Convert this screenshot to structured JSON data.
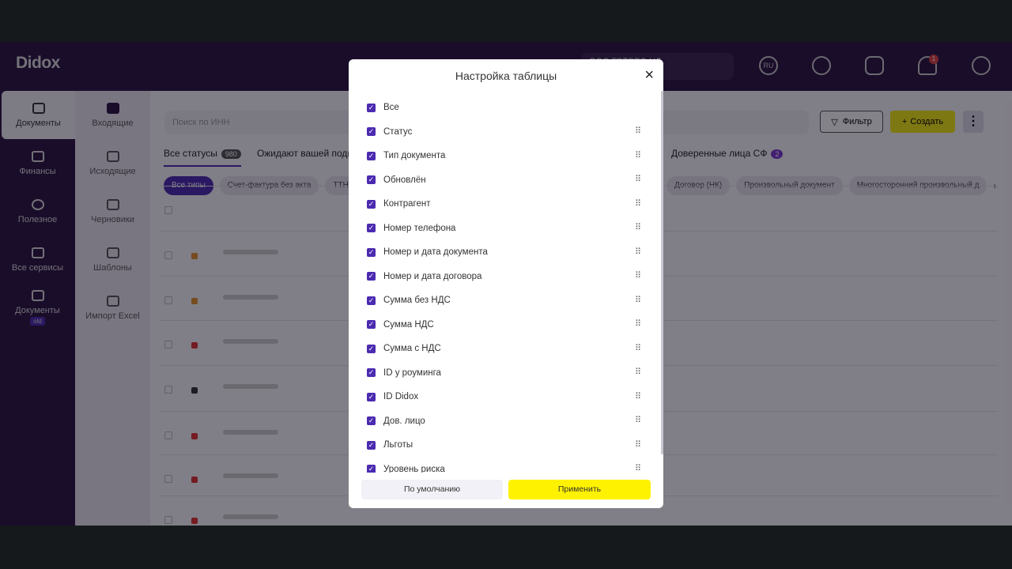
{
  "header": {
    "logo": "Didox",
    "company": "ООО ГОТОВО НЛ",
    "lang": "RU",
    "notifications": "1"
  },
  "sidebar": {
    "items": [
      {
        "label": "Документы"
      },
      {
        "label": "Финансы"
      },
      {
        "label": "Полезное"
      },
      {
        "label": "Все сервисы"
      },
      {
        "label": "Документы",
        "badge": "old"
      }
    ]
  },
  "subnav": {
    "items": [
      {
        "label": "Входящие"
      },
      {
        "label": "Исходящие"
      },
      {
        "label": "Черновики"
      },
      {
        "label": "Шаблоны"
      },
      {
        "label": "Импорт Excel"
      }
    ]
  },
  "main": {
    "search_placeholder": "Поиск по ИНН",
    "filter_label": "Фильтр",
    "create_label": "Создать",
    "tabs": [
      {
        "label": "Все статусы",
        "count": "980"
      },
      {
        "label": "Ожидают вашей подписи"
      }
    ],
    "tab_right": {
      "label": "Доверенные лица СФ",
      "count": "2"
    },
    "chips": [
      "Все типы",
      "Счет-фактура без акта",
      "ТТН (с"
    ],
    "chips_right": [
      "Договор (НК)",
      "Произвольный документ",
      "Многосторонний произвольный д"
    ]
  },
  "modal": {
    "title": "Настройка таблицы",
    "items": [
      "Все",
      "Статус",
      "Тип документа",
      "Обновлён",
      "Контрагент",
      "Номер телефона",
      "Номер и дата документа",
      "Номер и дата договора",
      "Сумма без НДС",
      "Сумма НДС",
      "Сумма с НДС",
      "ID у роуминга",
      "ID Didox",
      "Дов. лицо",
      "Льготы",
      "Уровень риска"
    ],
    "default_label": "По умолчанию",
    "apply_label": "Применить"
  },
  "colors": {
    "accent": "#4b2bb0",
    "apply": "#fff200",
    "sidebar": "#2b1540"
  }
}
